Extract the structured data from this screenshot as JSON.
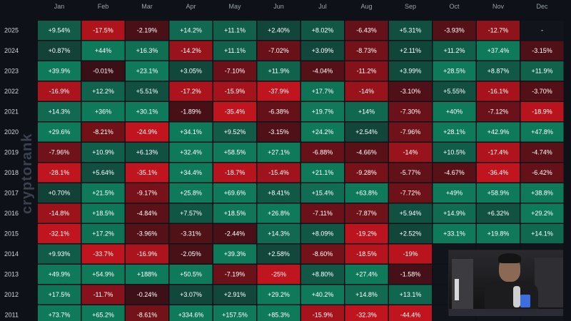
{
  "chart_data": {
    "type": "heatmap",
    "title": "",
    "columns": [
      "Jan",
      "Feb",
      "Mar",
      "Apr",
      "May",
      "Jun",
      "Jul",
      "Aug",
      "Sep",
      "Oct",
      "Nov",
      "Dec"
    ],
    "rows": [
      {
        "year": "2025",
        "values": [
          9.54,
          -17.5,
          -2.19,
          14.2,
          11.1,
          2.4,
          8.02,
          -6.43,
          5.31,
          -3.93,
          -12.7,
          null
        ],
        "labels": [
          "+9.54%",
          "-17.5%",
          "-2.19%",
          "+14.2%",
          "+11.1%",
          "+2.40%",
          "+8.02%",
          "-6.43%",
          "+5.31%",
          "-3.93%",
          "-12.7%",
          "-"
        ]
      },
      {
        "year": "2024",
        "values": [
          0.87,
          44,
          16.3,
          -14.2,
          11.1,
          -7.02,
          3.09,
          -8.73,
          2.11,
          11.2,
          37.4,
          -3.15
        ],
        "labels": [
          "+0.87%",
          "+44%",
          "+16.3%",
          "-14.2%",
          "+11.1%",
          "-7.02%",
          "+3.09%",
          "-8.73%",
          "+2.11%",
          "+11.2%",
          "+37.4%",
          "-3.15%"
        ]
      },
      {
        "year": "2023",
        "values": [
          39.9,
          -0.01,
          23.1,
          3.05,
          -7.1,
          11.9,
          -4.04,
          -11.2,
          3.99,
          28.5,
          8.87,
          11.9
        ],
        "labels": [
          "+39.9%",
          "-0.01%",
          "+23.1%",
          "+3.05%",
          "-7.10%",
          "+11.9%",
          "-4.04%",
          "-11.2%",
          "+3.99%",
          "+28.5%",
          "+8.87%",
          "+11.9%"
        ]
      },
      {
        "year": "2022",
        "values": [
          -16.9,
          12.2,
          5.51,
          -17.2,
          -15.9,
          -37.9,
          17.7,
          -14,
          -3.1,
          5.55,
          -16.1,
          -3.7
        ],
        "labels": [
          "-16.9%",
          "+12.2%",
          "+5.51%",
          "-17.2%",
          "-15.9%",
          "-37.9%",
          "+17.7%",
          "-14%",
          "-3.10%",
          "+5.55%",
          "-16.1%",
          "-3.70%"
        ]
      },
      {
        "year": "2021",
        "values": [
          14.3,
          36,
          30.1,
          -1.89,
          -35.4,
          -6.38,
          19.7,
          14,
          -7.3,
          40,
          -7.12,
          -18.9
        ],
        "labels": [
          "+14.3%",
          "+36%",
          "+30.1%",
          "-1.89%",
          "-35.4%",
          "-6.38%",
          "+19.7%",
          "+14%",
          "-7.30%",
          "+40%",
          "-7.12%",
          "-18.9%"
        ]
      },
      {
        "year": "2020",
        "values": [
          29.6,
          -8.21,
          -24.9,
          34.1,
          9.52,
          -3.15,
          24.2,
          2.54,
          -7.96,
          28.1,
          42.9,
          47.8
        ],
        "labels": [
          "+29.6%",
          "-8.21%",
          "-24.9%",
          "+34.1%",
          "+9.52%",
          "-3.15%",
          "+24.2%",
          "+2.54%",
          "-7.96%",
          "+28.1%",
          "+42.9%",
          "+47.8%"
        ]
      },
      {
        "year": "2019",
        "values": [
          -7.96,
          10.9,
          6.13,
          32.4,
          58.5,
          27.1,
          -6.88,
          -4.66,
          -14,
          10.5,
          -17.4,
          -4.74
        ],
        "labels": [
          "-7.96%",
          "+10.9%",
          "+6.13%",
          "+32.4%",
          "+58.5%",
          "+27.1%",
          "-6.88%",
          "-4.66%",
          "-14%",
          "+10.5%",
          "-17.4%",
          "-4.74%"
        ]
      },
      {
        "year": "2018",
        "values": [
          -28.1,
          5.64,
          -35.1,
          34.4,
          -18.7,
          -15.4,
          21.1,
          -9.28,
          -5.77,
          -4.67,
          -36.4,
          -6.42
        ],
        "labels": [
          "-28.1%",
          "+5.64%",
          "-35.1%",
          "+34.4%",
          "-18.7%",
          "-15.4%",
          "+21.1%",
          "-9.28%",
          "-5.77%",
          "-4.67%",
          "-36.4%",
          "-6.42%"
        ]
      },
      {
        "year": "2017",
        "values": [
          0.7,
          21.5,
          -9.17,
          25.8,
          69.6,
          8.41,
          15.4,
          63.8,
          -7.72,
          49,
          58.9,
          38.8
        ],
        "labels": [
          "+0.70%",
          "+21.5%",
          "-9.17%",
          "+25.8%",
          "+69.6%",
          "+8.41%",
          "+15.4%",
          "+63.8%",
          "-7.72%",
          "+49%",
          "+58.9%",
          "+38.8%"
        ]
      },
      {
        "year": "2016",
        "values": [
          -14.8,
          18.5,
          -4.84,
          7.57,
          18.5,
          26.8,
          -7.11,
          -7.87,
          5.94,
          14.9,
          6.32,
          29.2
        ],
        "labels": [
          "-14.8%",
          "+18.5%",
          "-4.84%",
          "+7.57%",
          "+18.5%",
          "+26.8%",
          "-7.11%",
          "-7.87%",
          "+5.94%",
          "+14.9%",
          "+6.32%",
          "+29.2%"
        ]
      },
      {
        "year": "2015",
        "values": [
          -32.1,
          17.2,
          -3.96,
          -3.31,
          -2.44,
          14.3,
          8.09,
          -19.2,
          2.52,
          33.1,
          19.8,
          14.1
        ],
        "labels": [
          "-32.1%",
          "+17.2%",
          "-3.96%",
          "-3.31%",
          "-2.44%",
          "+14.3%",
          "+8.09%",
          "-19.2%",
          "+2.52%",
          "+33.1%",
          "+19.8%",
          "+14.1%"
        ]
      },
      {
        "year": "2014",
        "values": [
          9.93,
          -33.7,
          -16.9,
          -2.05,
          39.3,
          2.58,
          -8.6,
          -18.5,
          -19,
          null,
          null,
          null
        ],
        "labels": [
          "+9.93%",
          "-33.7%",
          "-16.9%",
          "-2.05%",
          "+39.3%",
          "+2.58%",
          "-8.60%",
          "-18.5%",
          "-19%",
          "",
          "",
          ""
        ]
      },
      {
        "year": "2013",
        "values": [
          49.9,
          54.9,
          188,
          50.5,
          -7.19,
          -25,
          8.8,
          27.4,
          -1.58,
          null,
          null,
          null
        ],
        "labels": [
          "+49.9%",
          "+54.9%",
          "+188%",
          "+50.5%",
          "-7.19%",
          "-25%",
          "+8.80%",
          "+27.4%",
          "-1.58%",
          "",
          "",
          ""
        ]
      },
      {
        "year": "2012",
        "values": [
          17.5,
          -11.7,
          -0.24,
          3.07,
          2.91,
          29.2,
          40.2,
          14.8,
          13.1,
          null,
          null,
          null
        ],
        "labels": [
          "+17.5%",
          "-11.7%",
          "-0.24%",
          "+3.07%",
          "+2.91%",
          "+29.2%",
          "+40.2%",
          "+14.8%",
          "+13.1%",
          "",
          "",
          ""
        ]
      },
      {
        "year": "2011",
        "values": [
          73.7,
          65.2,
          -8.61,
          334.6,
          157.5,
          85.3,
          -15.9,
          -32.3,
          -44.4,
          null,
          null,
          null
        ],
        "labels": [
          "+73.7%",
          "+65.2%",
          "-8.61%",
          "+334.6%",
          "+157.5%",
          "+85.3%",
          "-15.9%",
          "-32.3%",
          "-44.4%",
          "",
          "",
          ""
        ]
      }
    ],
    "colors": {
      "positive_strong": "#0f7a5a",
      "positive_weak": "#123f36",
      "negative_strong": "#c0141e",
      "negative_weak": "#3a1016",
      "empty": "#11141b"
    }
  },
  "watermark": "cryptorank"
}
